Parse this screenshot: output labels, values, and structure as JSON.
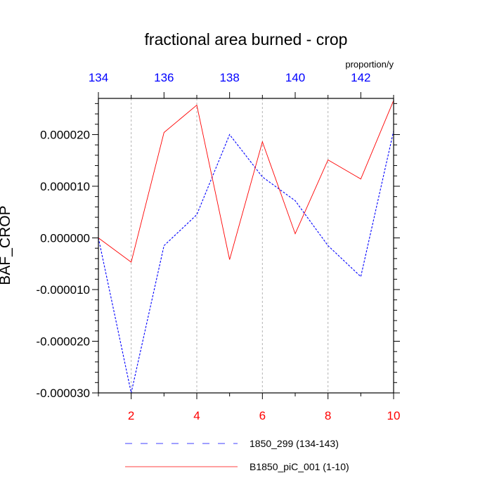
{
  "chart_data": {
    "type": "line",
    "title": "fractional area burned - crop",
    "ylabel": "BAF_CROP",
    "units": "proportion/y",
    "ylim": [
      -3e-05,
      2.7e-05
    ],
    "yticks": [
      {
        "value": 2e-05,
        "label": "0.000020"
      },
      {
        "value": 1e-05,
        "label": "0.000010"
      },
      {
        "value": 0.0,
        "label": "0.000000"
      },
      {
        "value": -1e-05,
        "label": "-0.000010"
      },
      {
        "value": -2e-05,
        "label": "-0.000020"
      },
      {
        "value": -3e-05,
        "label": "-0.000030"
      }
    ],
    "x_bottom": {
      "range": [
        1,
        10
      ],
      "ticks": [
        2,
        4,
        6,
        8,
        10
      ],
      "tick_labels": [
        "2",
        "4",
        "6",
        "8",
        "10"
      ],
      "color": "#ff0000"
    },
    "x_top": {
      "range": [
        134,
        143
      ],
      "ticks": [
        134,
        136,
        138,
        140,
        142
      ],
      "tick_labels": [
        "134",
        "136",
        "138",
        "140",
        "142"
      ],
      "color": "#0000ff"
    },
    "grid": "vertical dashed at even years",
    "series": [
      {
        "name": "1850_299 (134-143)",
        "axis": "top",
        "color": "#0000ff",
        "style": "dashed",
        "x": [
          134,
          135,
          136,
          137,
          138,
          139,
          140,
          141,
          142,
          143
        ],
        "values": [
          0.0,
          -3e-05,
          -1.5e-06,
          4.5e-06,
          2e-05,
          1.18e-05,
          7.2e-06,
          -1.5e-06,
          -7.5e-06,
          2.07e-05
        ]
      },
      {
        "name": "B1850_piC_001 (1-10)",
        "axis": "bottom",
        "color": "#ff0000",
        "style": "solid",
        "x": [
          1,
          2,
          3,
          4,
          5,
          6,
          7,
          8,
          9,
          10
        ],
        "values": [
          0.0,
          -4.7e-06,
          2.04e-05,
          2.57e-05,
          -4.2e-06,
          1.86e-05,
          8e-07,
          1.51e-05,
          1.14e-05,
          2.66e-05
        ]
      }
    ]
  }
}
